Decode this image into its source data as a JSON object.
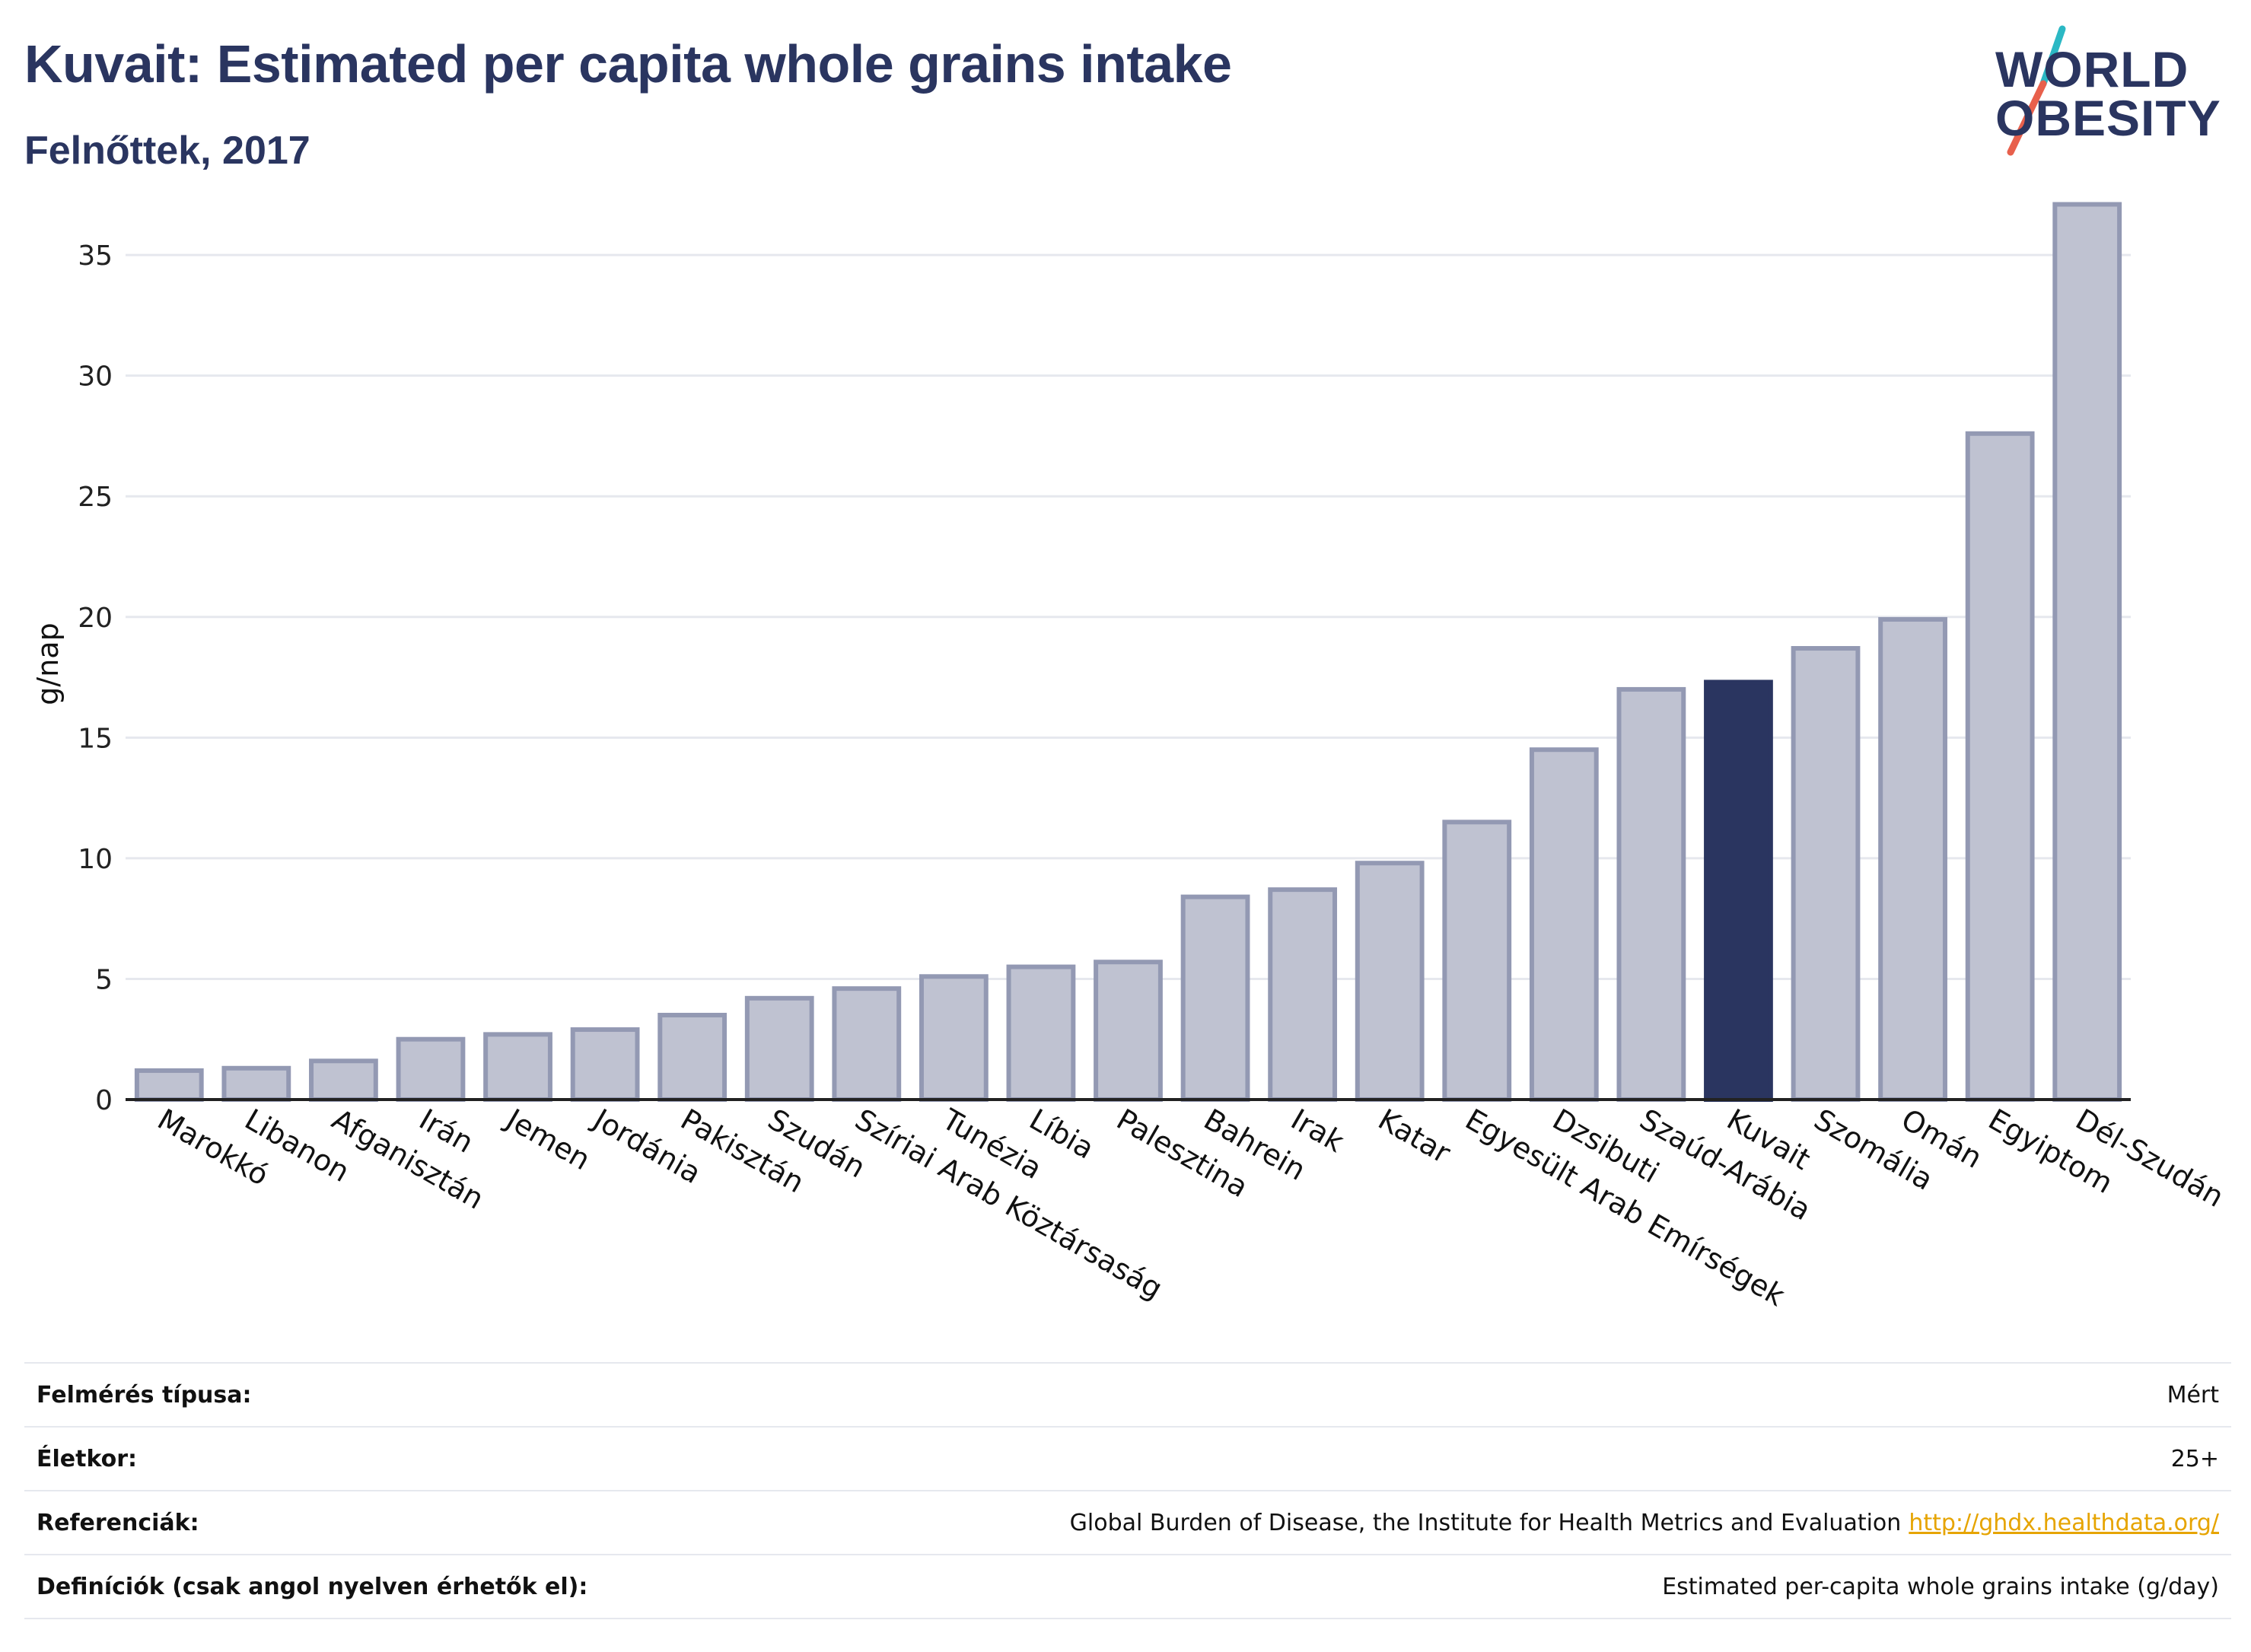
{
  "header": {
    "title": "Kuvait: Estimated per capita whole grains intake",
    "subtitle": "Felnőttek, 2017"
  },
  "logo": {
    "line1": "WORLD",
    "line2": "OBESITY",
    "colors": {
      "text": "#2a3560",
      "slash_top": "#2bb8c4",
      "slash_bottom": "#e8604c"
    }
  },
  "chart_data": {
    "type": "bar",
    "title": "",
    "xlabel": "",
    "ylabel": "g/nap",
    "ylim": [
      0,
      38
    ],
    "yticks": [
      0,
      5,
      10,
      15,
      20,
      25,
      30,
      35
    ],
    "grid": true,
    "categories": [
      "Marokkó",
      "Libanon",
      "Afganisztán",
      "Irán",
      "Jemen",
      "Jordánia",
      "Pakisztán",
      "Szudán",
      "Szíriai Arab Köztársaság",
      "Tunézia",
      "Líbia",
      "Palesztina",
      "Bahrein",
      "Irak",
      "Katar",
      "Egyesült Arab Emírségek",
      "Dzsibuti",
      "Szaúd-Arábia",
      "Kuvait",
      "Szomália",
      "Omán",
      "Egyiptom",
      "Dél-Szudán"
    ],
    "values": [
      1.2,
      1.3,
      1.6,
      2.5,
      2.7,
      2.9,
      3.5,
      4.2,
      4.6,
      5.1,
      5.5,
      5.7,
      8.4,
      8.7,
      9.8,
      11.5,
      14.5,
      17.0,
      17.3,
      18.7,
      19.9,
      27.6,
      37.1
    ],
    "highlight": "Kuvait",
    "colors": {
      "bar": "#bfc2d1",
      "bar_border": "#9399b3",
      "highlight": "#2a3560",
      "grid": "#e6e8ee",
      "axis": "#222222"
    }
  },
  "info": [
    {
      "label": "Felmérés típusa:",
      "value": "Mért"
    },
    {
      "label": "Életkor:",
      "value": "25+"
    },
    {
      "label": "Referenciák:",
      "value": "Global Burden of Disease, the Institute for Health Metrics and Evaluation",
      "link": "http://ghdx.healthdata.org/"
    },
    {
      "label": "Definíciók (csak angol nyelven érhetők el):",
      "value": "Estimated per-capita whole grains intake (g/day)"
    }
  ]
}
